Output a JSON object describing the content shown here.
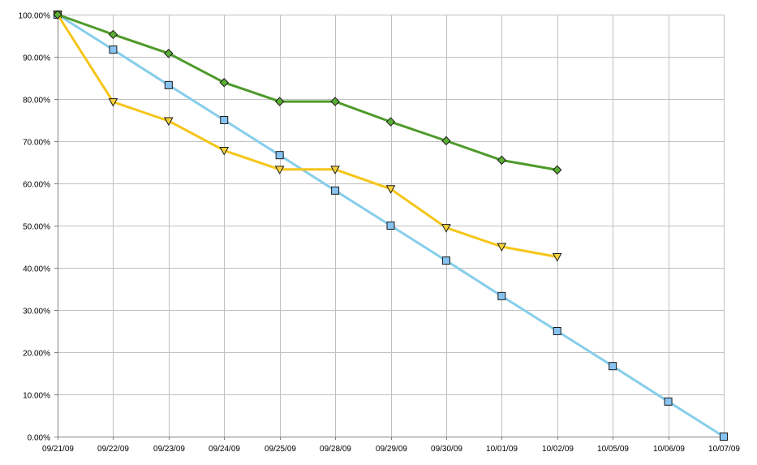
{
  "chart_data": {
    "type": "line",
    "title": "",
    "xlabel": "",
    "ylabel": "",
    "categories": [
      "09/21/09",
      "09/22/09",
      "09/23/09",
      "09/24/09",
      "09/25/09",
      "09/28/09",
      "09/29/09",
      "09/30/09",
      "10/01/09",
      "10/02/09",
      "10/05/09",
      "10/06/09",
      "10/07/09"
    ],
    "yticks": [
      "0.00%",
      "10.00%",
      "20.00%",
      "30.00%",
      "40.00%",
      "50.00%",
      "60.00%",
      "70.00%",
      "80.00%",
      "90.00%",
      "100.00%"
    ],
    "ylim": [
      0,
      100
    ],
    "grid": true,
    "legend": "none",
    "series": [
      {
        "marker": "square",
        "color": "#87CEEB",
        "marker_fill": "#87C3F0",
        "values": [
          100,
          91.7,
          83.3,
          75.0,
          66.7,
          58.3,
          50.0,
          41.7,
          33.3,
          25.0,
          16.7,
          8.3,
          0
        ]
      },
      {
        "marker": "triangle-down",
        "color": "#F5C518",
        "marker_fill": "#F9D33A",
        "values": [
          100,
          79.3,
          74.8,
          67.8,
          63.3,
          63.3,
          58.7,
          49.5,
          45.0,
          42.6,
          null,
          null,
          null
        ]
      },
      {
        "marker": "diamond",
        "color": "#4E9A2A",
        "marker_fill": "#5BAE35",
        "values": [
          100,
          95.3,
          90.8,
          83.9,
          79.4,
          79.4,
          74.6,
          70.1,
          65.5,
          63.2,
          null,
          null,
          null
        ]
      }
    ]
  }
}
